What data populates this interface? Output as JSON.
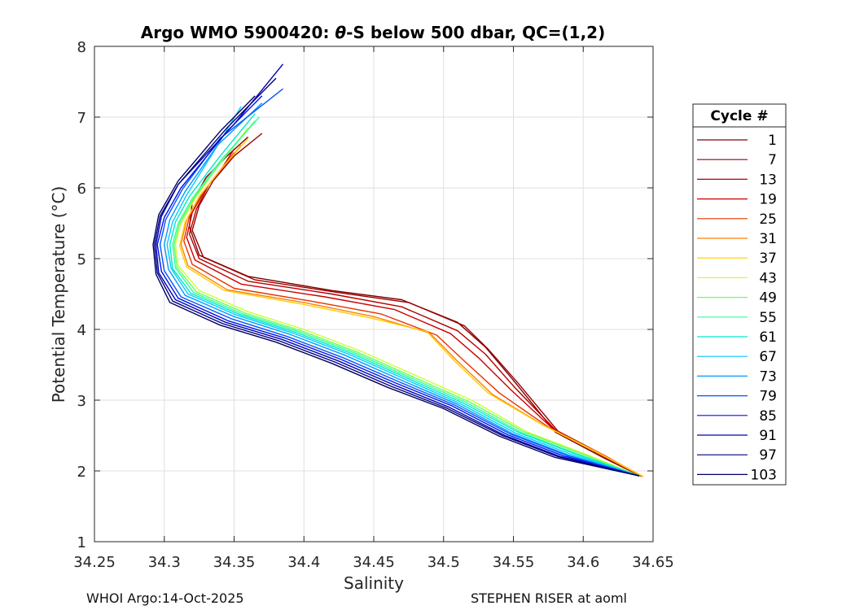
{
  "chart_data": {
    "type": "line",
    "title": "Argo WMO 5900420: θ-S below 500 dbar,  QC=(1,2)",
    "title_parts": {
      "prefix": "Argo WMO 5900420: ",
      "theta": "θ",
      "suffix": "-S below 500 dbar,  QC=(1,2)"
    },
    "xlabel": "Salinity",
    "ylabel": "Potential Temperature (°C)",
    "xlim": [
      34.25,
      34.65
    ],
    "ylim": [
      1,
      8
    ],
    "xticks": [
      "34.25",
      "34.3",
      "34.35",
      "34.4",
      "34.45",
      "34.5",
      "34.55",
      "34.6",
      "34.65"
    ],
    "yticks": [
      "1",
      "2",
      "3",
      "4",
      "5",
      "6",
      "7",
      "8"
    ],
    "grid": true,
    "legend_title": "Cycle #",
    "legend_position": "right",
    "series": [
      {
        "name": "1",
        "color": "#800000",
        "points": [
          [
            34.641,
            1.93
          ],
          [
            34.615,
            2.18
          ],
          [
            34.58,
            2.55
          ],
          [
            34.55,
            3.28
          ],
          [
            34.53,
            3.75
          ],
          [
            34.51,
            4.1
          ],
          [
            34.47,
            4.42
          ],
          [
            34.42,
            4.55
          ],
          [
            34.36,
            4.75
          ],
          [
            34.325,
            5.05
          ],
          [
            34.318,
            5.45
          ],
          [
            34.32,
            5.8
          ],
          [
            34.33,
            6.15
          ],
          [
            34.345,
            6.45
          ],
          [
            34.36,
            6.72
          ]
        ]
      },
      {
        "name": "7",
        "color": "#990000",
        "points": [
          [
            34.641,
            1.93
          ],
          [
            34.617,
            2.2
          ],
          [
            34.582,
            2.56
          ],
          [
            34.553,
            3.25
          ],
          [
            34.532,
            3.72
          ],
          [
            34.515,
            4.05
          ],
          [
            34.475,
            4.38
          ],
          [
            34.425,
            4.52
          ],
          [
            34.365,
            4.7
          ],
          [
            34.328,
            5.02
          ],
          [
            34.32,
            5.4
          ],
          [
            34.325,
            5.75
          ],
          [
            34.335,
            6.1
          ],
          [
            34.35,
            6.45
          ],
          [
            34.37,
            6.77
          ]
        ]
      },
      {
        "name": "13",
        "color": "#b30000",
        "points": [
          [
            34.641,
            1.93
          ],
          [
            34.615,
            2.22
          ],
          [
            34.58,
            2.58
          ],
          [
            34.55,
            3.2
          ],
          [
            34.53,
            3.65
          ],
          [
            34.51,
            3.98
          ],
          [
            34.47,
            4.32
          ],
          [
            34.42,
            4.5
          ],
          [
            34.36,
            4.68
          ],
          [
            34.325,
            5.0
          ],
          [
            34.318,
            5.35
          ],
          [
            34.323,
            5.7
          ],
          [
            34.332,
            6.05
          ],
          [
            34.345,
            6.35
          ],
          [
            34.355,
            6.6
          ]
        ]
      },
      {
        "name": "19",
        "color": "#cc0000",
        "points": [
          [
            34.641,
            1.93
          ],
          [
            34.613,
            2.22
          ],
          [
            34.578,
            2.6
          ],
          [
            34.548,
            3.15
          ],
          [
            34.525,
            3.6
          ],
          [
            34.505,
            3.94
          ],
          [
            34.465,
            4.28
          ],
          [
            34.415,
            4.46
          ],
          [
            34.355,
            4.64
          ],
          [
            34.322,
            4.98
          ],
          [
            34.316,
            5.3
          ],
          [
            34.32,
            5.65
          ],
          [
            34.33,
            6.0
          ],
          [
            34.342,
            6.3
          ],
          [
            34.35,
            6.55
          ]
        ]
      },
      {
        "name": "25",
        "color": "#e63300",
        "points": [
          [
            34.642,
            1.92
          ],
          [
            34.612,
            2.25
          ],
          [
            34.575,
            2.62
          ],
          [
            34.54,
            3.1
          ],
          [
            34.515,
            3.55
          ],
          [
            34.495,
            3.92
          ],
          [
            34.455,
            4.22
          ],
          [
            34.405,
            4.4
          ],
          [
            34.35,
            4.58
          ],
          [
            34.32,
            4.92
          ],
          [
            34.314,
            5.25
          ],
          [
            34.318,
            5.6
          ],
          [
            34.328,
            5.95
          ],
          [
            34.34,
            6.25
          ],
          [
            34.35,
            6.5
          ]
        ]
      },
      {
        "name": "31",
        "color": "#ff8000",
        "points": [
          [
            34.643,
            1.92
          ],
          [
            34.61,
            2.27
          ],
          [
            34.572,
            2.64
          ],
          [
            34.535,
            3.08
          ],
          [
            34.51,
            3.55
          ],
          [
            34.49,
            3.95
          ],
          [
            34.45,
            4.18
          ],
          [
            34.4,
            4.38
          ],
          [
            34.345,
            4.56
          ],
          [
            34.317,
            4.9
          ],
          [
            34.312,
            5.2
          ],
          [
            34.316,
            5.55
          ],
          [
            34.326,
            5.9
          ],
          [
            34.34,
            6.25
          ],
          [
            34.355,
            6.6
          ]
        ]
      },
      {
        "name": "37",
        "color": "#ffcc00",
        "points": [
          [
            34.643,
            1.92
          ],
          [
            34.608,
            2.28
          ],
          [
            34.57,
            2.66
          ],
          [
            34.532,
            3.1
          ],
          [
            34.508,
            3.55
          ],
          [
            34.488,
            3.97
          ],
          [
            34.448,
            4.16
          ],
          [
            34.398,
            4.36
          ],
          [
            34.343,
            4.55
          ],
          [
            34.316,
            4.88
          ],
          [
            34.311,
            5.18
          ],
          [
            34.315,
            5.52
          ],
          [
            34.325,
            5.88
          ],
          [
            34.34,
            6.25
          ],
          [
            34.36,
            6.7
          ]
        ]
      },
      {
        "name": "43",
        "color": "#ccff33",
        "points": [
          [
            34.64,
            1.93
          ],
          [
            34.6,
            2.25
          ],
          [
            34.56,
            2.55
          ],
          [
            34.52,
            3.0
          ],
          [
            34.48,
            3.35
          ],
          [
            34.44,
            3.7
          ],
          [
            34.4,
            4.0
          ],
          [
            34.36,
            4.25
          ],
          [
            34.325,
            4.55
          ],
          [
            34.31,
            4.9
          ],
          [
            34.308,
            5.2
          ],
          [
            34.312,
            5.5
          ],
          [
            34.322,
            5.85
          ],
          [
            34.338,
            6.3
          ],
          [
            34.36,
            6.85
          ]
        ]
      },
      {
        "name": "49",
        "color": "#66ff66",
        "points": [
          [
            34.64,
            1.93
          ],
          [
            34.598,
            2.25
          ],
          [
            34.558,
            2.55
          ],
          [
            34.518,
            2.98
          ],
          [
            34.478,
            3.33
          ],
          [
            34.438,
            3.68
          ],
          [
            34.398,
            3.98
          ],
          [
            34.358,
            4.23
          ],
          [
            34.323,
            4.53
          ],
          [
            34.309,
            4.88
          ],
          [
            34.307,
            5.2
          ],
          [
            34.311,
            5.5
          ],
          [
            34.321,
            5.85
          ],
          [
            34.34,
            6.35
          ],
          [
            34.365,
            6.95
          ]
        ]
      },
      {
        "name": "55",
        "color": "#33ff99",
        "points": [
          [
            34.64,
            1.93
          ],
          [
            34.596,
            2.24
          ],
          [
            34.556,
            2.54
          ],
          [
            34.516,
            2.97
          ],
          [
            34.476,
            3.32
          ],
          [
            34.436,
            3.67
          ],
          [
            34.396,
            3.97
          ],
          [
            34.356,
            4.22
          ],
          [
            34.321,
            4.52
          ],
          [
            34.308,
            4.87
          ],
          [
            34.306,
            5.2
          ],
          [
            34.31,
            5.5
          ],
          [
            34.32,
            5.85
          ],
          [
            34.34,
            6.38
          ],
          [
            34.368,
            7.0
          ]
        ]
      },
      {
        "name": "61",
        "color": "#00e6cc",
        "points": [
          [
            34.64,
            1.93
          ],
          [
            34.594,
            2.24
          ],
          [
            34.554,
            2.54
          ],
          [
            34.514,
            2.96
          ],
          [
            34.474,
            3.31
          ],
          [
            34.434,
            3.66
          ],
          [
            34.394,
            3.96
          ],
          [
            34.354,
            4.21
          ],
          [
            34.319,
            4.51
          ],
          [
            34.306,
            4.86
          ],
          [
            34.304,
            5.2
          ],
          [
            34.308,
            5.52
          ],
          [
            34.318,
            5.88
          ],
          [
            34.34,
            6.45
          ],
          [
            34.365,
            7.05
          ]
        ]
      },
      {
        "name": "67",
        "color": "#00ccff",
        "points": [
          [
            34.64,
            1.93
          ],
          [
            34.592,
            2.23
          ],
          [
            34.552,
            2.53
          ],
          [
            34.512,
            2.95
          ],
          [
            34.472,
            3.3
          ],
          [
            34.432,
            3.65
          ],
          [
            34.392,
            3.95
          ],
          [
            34.352,
            4.2
          ],
          [
            34.317,
            4.5
          ],
          [
            34.305,
            4.86
          ],
          [
            34.302,
            5.2
          ],
          [
            34.306,
            5.52
          ],
          [
            34.316,
            5.9
          ],
          [
            34.335,
            6.5
          ],
          [
            34.355,
            7.15
          ]
        ]
      },
      {
        "name": "73",
        "color": "#0099ff",
        "points": [
          [
            34.64,
            1.93
          ],
          [
            34.59,
            2.22
          ],
          [
            34.55,
            2.52
          ],
          [
            34.51,
            2.94
          ],
          [
            34.47,
            3.28
          ],
          [
            34.43,
            3.63
          ],
          [
            34.39,
            3.93
          ],
          [
            34.35,
            4.18
          ],
          [
            34.315,
            4.48
          ],
          [
            34.303,
            4.85
          ],
          [
            34.3,
            5.2
          ],
          [
            34.304,
            5.55
          ],
          [
            34.315,
            5.95
          ],
          [
            34.338,
            6.6
          ],
          [
            34.37,
            7.2
          ]
        ]
      },
      {
        "name": "79",
        "color": "#0055ff",
        "points": [
          [
            34.64,
            1.93
          ],
          [
            34.588,
            2.22
          ],
          [
            34.548,
            2.52
          ],
          [
            34.508,
            2.93
          ],
          [
            34.468,
            3.26
          ],
          [
            34.428,
            3.6
          ],
          [
            34.388,
            3.9
          ],
          [
            34.348,
            4.15
          ],
          [
            34.312,
            4.46
          ],
          [
            34.3,
            4.83
          ],
          [
            34.297,
            5.2
          ],
          [
            34.301,
            5.55
          ],
          [
            34.313,
            5.98
          ],
          [
            34.34,
            6.7
          ],
          [
            34.385,
            7.4
          ]
        ]
      },
      {
        "name": "85",
        "color": "#0011ee",
        "points": [
          [
            34.64,
            1.93
          ],
          [
            34.586,
            2.21
          ],
          [
            34.546,
            2.51
          ],
          [
            34.506,
            2.92
          ],
          [
            34.466,
            3.24
          ],
          [
            34.426,
            3.58
          ],
          [
            34.386,
            3.88
          ],
          [
            34.346,
            4.12
          ],
          [
            34.31,
            4.44
          ],
          [
            34.298,
            4.82
          ],
          [
            34.295,
            5.2
          ],
          [
            34.3,
            5.58
          ],
          [
            34.312,
            6.0
          ],
          [
            34.345,
            6.8
          ],
          [
            34.37,
            7.3
          ]
        ]
      },
      {
        "name": "91",
        "color": "#0000b3",
        "points": [
          [
            34.64,
            1.93
          ],
          [
            34.584,
            2.2
          ],
          [
            34.544,
            2.5
          ],
          [
            34.504,
            2.9
          ],
          [
            34.464,
            3.22
          ],
          [
            34.424,
            3.56
          ],
          [
            34.384,
            3.86
          ],
          [
            34.344,
            4.1
          ],
          [
            34.308,
            4.42
          ],
          [
            34.296,
            4.8
          ],
          [
            34.294,
            5.2
          ],
          [
            34.298,
            5.6
          ],
          [
            34.31,
            6.05
          ],
          [
            34.35,
            6.9
          ],
          [
            34.385,
            7.75
          ]
        ]
      },
      {
        "name": "97",
        "color": "#000080",
        "points": [
          [
            34.64,
            1.93
          ],
          [
            34.582,
            2.2
          ],
          [
            34.542,
            2.5
          ],
          [
            34.502,
            2.89
          ],
          [
            34.462,
            3.2
          ],
          [
            34.422,
            3.54
          ],
          [
            34.382,
            3.84
          ],
          [
            34.342,
            4.08
          ],
          [
            34.306,
            4.4
          ],
          [
            34.295,
            4.8
          ],
          [
            34.293,
            5.2
          ],
          [
            34.297,
            5.6
          ],
          [
            34.31,
            6.05
          ],
          [
            34.345,
            6.85
          ],
          [
            34.38,
            7.55
          ]
        ]
      },
      {
        "name": "103",
        "color": "#000066",
        "points": [
          [
            34.64,
            1.93
          ],
          [
            34.58,
            2.19
          ],
          [
            34.54,
            2.49
          ],
          [
            34.5,
            2.88
          ],
          [
            34.46,
            3.18
          ],
          [
            34.42,
            3.52
          ],
          [
            34.38,
            3.82
          ],
          [
            34.34,
            4.06
          ],
          [
            34.304,
            4.38
          ],
          [
            34.294,
            4.78
          ],
          [
            34.292,
            5.2
          ],
          [
            34.296,
            5.62
          ],
          [
            34.31,
            6.1
          ],
          [
            34.34,
            6.8
          ],
          [
            34.365,
            7.3
          ]
        ]
      }
    ]
  },
  "footer": {
    "left": "WHOI Argo:14-Oct-2025",
    "right": "STEPHEN RISER at aoml"
  }
}
